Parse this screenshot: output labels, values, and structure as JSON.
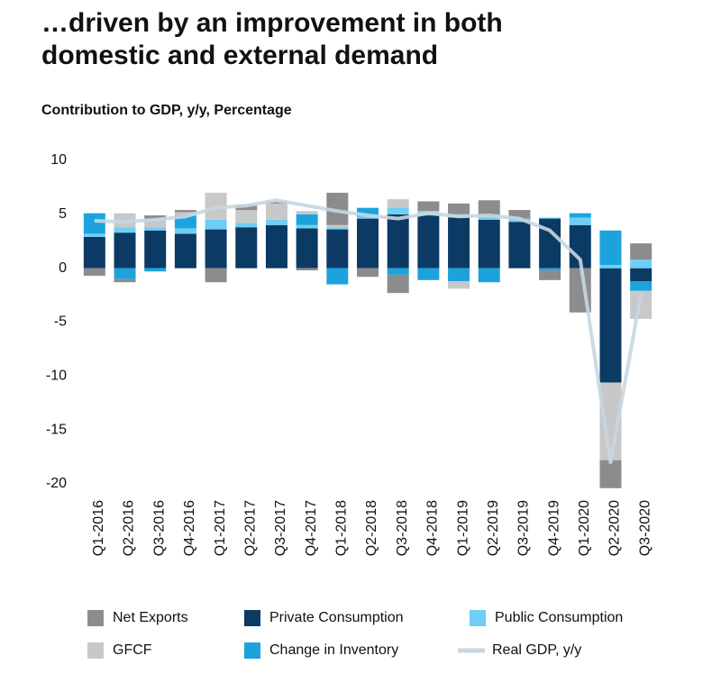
{
  "chart_data": {
    "type": "stacked_bar",
    "title": "…driven by an improvement in both domestic and external demand",
    "subtitle": "Contribution to GDP, y/y, Percentage",
    "categories": [
      "Q1-2016",
      "Q2-2016",
      "Q3-2016",
      "Q4-2016",
      "Q1-2017",
      "Q2-2017",
      "Q3-2017",
      "Q4-2017",
      "Q1-2018",
      "Q2-2018",
      "Q3-2018",
      "Q4-2018",
      "Q1-2019",
      "Q2-2019",
      "Q3-2019",
      "Q4-2019",
      "Q1-2020",
      "Q2-2020",
      "Q3-2020"
    ],
    "series": [
      {
        "name": "Private Consumption",
        "color": "#0b3a64",
        "values": [
          2.9,
          3.3,
          3.5,
          3.2,
          3.6,
          3.8,
          4.0,
          3.7,
          3.6,
          4.6,
          5.0,
          4.9,
          4.7,
          4.5,
          4.3,
          4.6,
          4.0,
          -10.6,
          -1.2
        ]
      },
      {
        "name": "Public Consumption",
        "color": "#6dcff6",
        "values": [
          0.3,
          0.5,
          0.3,
          0.5,
          0.9,
          0.4,
          0.5,
          0.3,
          0.2,
          0.2,
          0.6,
          0.3,
          0.3,
          0.3,
          0.3,
          0.1,
          0.7,
          0.3,
          0.8
        ]
      },
      {
        "name": "Change in Inventory",
        "color": "#1ca3de",
        "values": [
          1.9,
          -1.0,
          -0.3,
          1.2,
          0.0,
          0.0,
          0.0,
          1.0,
          -1.5,
          0.8,
          -0.6,
          -1.1,
          -1.2,
          -1.3,
          0.0,
          -0.2,
          0.4,
          3.2,
          -0.9
        ]
      },
      {
        "name": "GFCF",
        "color": "#c8c8c8",
        "values": [
          0.0,
          1.3,
          0.8,
          0.3,
          2.5,
          1.2,
          1.5,
          0.3,
          0.2,
          0.0,
          0.8,
          0.1,
          -0.7,
          0.0,
          0.0,
          0.0,
          0.0,
          -7.2,
          -2.6
        ]
      },
      {
        "name": "Net Exports",
        "color": "#8c8c8e",
        "values": [
          -0.7,
          -0.3,
          0.3,
          0.2,
          -1.3,
          0.5,
          0.2,
          -0.2,
          3.0,
          -0.8,
          -1.7,
          0.9,
          1.0,
          1.5,
          0.8,
          -0.9,
          -4.1,
          -2.6,
          1.5
        ]
      }
    ],
    "line_series": {
      "name": "Real GDP, y/y",
      "color": "#c9d6df",
      "values": [
        4.4,
        4.3,
        4.5,
        4.8,
        5.6,
        5.8,
        6.3,
        5.8,
        5.3,
        4.9,
        4.6,
        5.1,
        4.8,
        4.9,
        4.6,
        3.5,
        0.8,
        -18.0,
        -2.4
      ]
    },
    "ylim": [
      -20,
      10
    ],
    "yticks": [
      -20,
      -15,
      -10,
      -5,
      0,
      5,
      10
    ],
    "grid": false
  }
}
